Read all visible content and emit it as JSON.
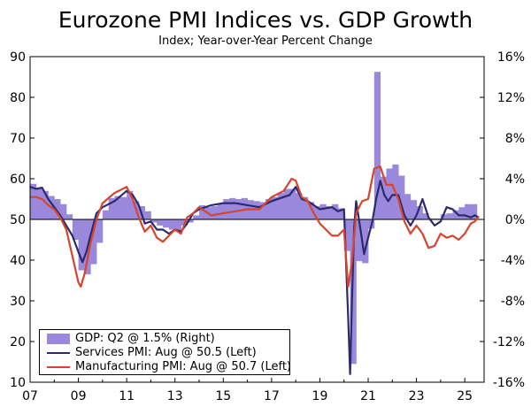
{
  "chart_data": {
    "type": "bar+line",
    "title": "Eurozone PMI Indices vs. GDP Growth",
    "subtitle": "Index; Year-over-Year Percent Change",
    "left_axis": {
      "ylim": [
        10,
        90
      ],
      "ticks": [
        "90",
        "80",
        "70",
        "60",
        "50",
        "40",
        "30",
        "20",
        "10"
      ]
    },
    "right_axis": {
      "ylim": [
        -16,
        16
      ],
      "ticks": [
        "16%",
        "12%",
        "8%",
        "4%",
        "0%",
        "-4%",
        "-8%",
        "-12%",
        "-16%"
      ]
    },
    "x_axis": {
      "xlim": [
        2007,
        2025.8
      ],
      "ticks": [
        "07",
        "09",
        "11",
        "13",
        "15",
        "17",
        "19",
        "21",
        "23",
        "25"
      ]
    },
    "reference_line": 50,
    "legend": [
      {
        "label": "GDP: Q2 @ 1.5% (Right)",
        "color": "#9a88dc",
        "kind": "bar"
      },
      {
        "label": "Services PMI: Aug @ 50.5 (Left)",
        "color": "#2a2a6e",
        "kind": "line"
      },
      {
        "label": "Manufacturing PMI: Aug @ 50.7 (Left)",
        "color": "#d8442a",
        "kind": "line"
      }
    ],
    "series": [
      {
        "name": "GDP: Q2 @ 1.5% (Right)",
        "axis": "right",
        "quarters": [
          2007.0,
          2007.25,
          2007.5,
          2007.75,
          2008.0,
          2008.25,
          2008.5,
          2008.75,
          2009.0,
          2009.25,
          2009.5,
          2009.75,
          2010.0,
          2010.25,
          2010.5,
          2010.75,
          2011.0,
          2011.25,
          2011.5,
          2011.75,
          2012.0,
          2012.25,
          2012.5,
          2012.75,
          2013.0,
          2013.25,
          2013.5,
          2013.75,
          2014.0,
          2014.25,
          2014.5,
          2014.75,
          2015.0,
          2015.25,
          2015.5,
          2015.75,
          2016.0,
          2016.25,
          2016.5,
          2016.75,
          2017.0,
          2017.25,
          2017.5,
          2017.75,
          2018.0,
          2018.25,
          2018.5,
          2018.75,
          2019.0,
          2019.25,
          2019.5,
          2019.75,
          2020.0,
          2020.25,
          2020.5,
          2020.75,
          2021.0,
          2021.25,
          2021.5,
          2021.75,
          2022.0,
          2022.25,
          2022.5,
          2022.75,
          2023.0,
          2023.25,
          2023.5,
          2023.75,
          2024.0,
          2024.25,
          2024.5,
          2024.75,
          2025.0,
          2025.25
        ],
        "values": [
          3.5,
          3.0,
          2.8,
          2.3,
          2.0,
          1.5,
          0.5,
          -2.0,
          -5.0,
          -5.4,
          -4.4,
          -2.3,
          0.9,
          2.1,
          2.3,
          2.2,
          2.8,
          1.8,
          1.3,
          0.8,
          -0.3,
          -0.6,
          -0.8,
          -1.0,
          -1.2,
          -0.6,
          -0.3,
          0.4,
          1.4,
          1.2,
          1.3,
          1.5,
          2.0,
          2.1,
          2.0,
          2.1,
          1.9,
          1.8,
          1.7,
          2.0,
          2.2,
          2.6,
          3.0,
          3.0,
          2.6,
          2.2,
          1.7,
          1.3,
          1.5,
          1.3,
          1.5,
          1.1,
          -3.1,
          -14.2,
          -4.1,
          -4.3,
          -0.9,
          14.5,
          4.2,
          5.0,
          5.4,
          4.3,
          2.5,
          1.9,
          1.3,
          0.6,
          0.1,
          0.1,
          0.5,
          0.6,
          0.9,
          1.2,
          1.5,
          1.5
        ]
      },
      {
        "name": "Services PMI: Aug @ 50.5 (Left)",
        "axis": "left",
        "x": [
          2007.0,
          2007.25,
          2007.5,
          2007.75,
          2008.0,
          2008.25,
          2008.5,
          2008.75,
          2009.0,
          2009.17,
          2009.33,
          2009.5,
          2009.75,
          2010.0,
          2010.5,
          2011.0,
          2011.25,
          2011.5,
          2011.75,
          2012.0,
          2012.25,
          2012.5,
          2012.75,
          2013.0,
          2013.25,
          2013.5,
          2013.75,
          2014.0,
          2014.5,
          2015.0,
          2015.5,
          2016.0,
          2016.5,
          2017.0,
          2017.5,
          2017.75,
          2018.0,
          2018.25,
          2018.5,
          2019.0,
          2019.5,
          2019.75,
          2020.0,
          2020.17,
          2020.25,
          2020.33,
          2020.42,
          2020.5,
          2020.67,
          2020.83,
          2021.0,
          2021.17,
          2021.33,
          2021.5,
          2021.67,
          2021.83,
          2022.0,
          2022.25,
          2022.5,
          2022.75,
          2023.0,
          2023.25,
          2023.5,
          2023.75,
          2024.0,
          2024.25,
          2024.5,
          2024.75,
          2025.0,
          2025.25,
          2025.42,
          2025.58
        ],
        "values": [
          58.0,
          57.5,
          57.8,
          55.0,
          53.0,
          51.0,
          48.5,
          46.0,
          42.0,
          39.5,
          42.0,
          46.0,
          51.5,
          53.0,
          54.5,
          57.0,
          56.0,
          53.5,
          49.0,
          49.5,
          47.5,
          47.5,
          46.5,
          47.5,
          47.0,
          49.0,
          51.5,
          52.5,
          53.5,
          54.0,
          54.0,
          53.5,
          53.0,
          54.5,
          55.5,
          56.0,
          58.0,
          55.0,
          54.5,
          52.5,
          53.0,
          52.0,
          52.5,
          26.0,
          12.0,
          30.0,
          48.0,
          54.5,
          48.0,
          41.5,
          45.5,
          49.5,
          55.0,
          59.5,
          56.0,
          54.5,
          56.0,
          56.0,
          51.0,
          48.5,
          51.0,
          55.0,
          50.5,
          48.5,
          49.5,
          53.0,
          52.5,
          51.0,
          51.0,
          50.5,
          51.0,
          50.5
        ]
      },
      {
        "name": "Manufacturing PMI: Aug @ 50.7 (Left)",
        "axis": "left",
        "x": [
          2007.0,
          2007.25,
          2007.5,
          2007.75,
          2008.0,
          2008.25,
          2008.5,
          2008.75,
          2009.0,
          2009.1,
          2009.25,
          2009.5,
          2009.75,
          2010.0,
          2010.5,
          2011.0,
          2011.25,
          2011.5,
          2011.75,
          2012.0,
          2012.25,
          2012.5,
          2012.75,
          2013.0,
          2013.25,
          2013.5,
          2013.75,
          2014.0,
          2014.5,
          2015.0,
          2015.5,
          2016.0,
          2016.5,
          2017.0,
          2017.5,
          2017.83,
          2018.0,
          2018.25,
          2018.5,
          2018.75,
          2019.0,
          2019.25,
          2019.5,
          2019.75,
          2020.0,
          2020.17,
          2020.33,
          2020.5,
          2020.75,
          2021.0,
          2021.25,
          2021.5,
          2021.75,
          2022.0,
          2022.25,
          2022.5,
          2022.75,
          2023.0,
          2023.25,
          2023.5,
          2023.75,
          2024.0,
          2024.25,
          2024.5,
          2024.75,
          2025.0,
          2025.25,
          2025.42,
          2025.58
        ],
        "values": [
          55.5,
          55.5,
          55.0,
          53.5,
          52.5,
          50.5,
          47.5,
          41.0,
          34.5,
          33.5,
          36.5,
          44.0,
          50.0,
          54.0,
          56.5,
          58.0,
          55.0,
          50.5,
          47.0,
          48.5,
          45.5,
          44.5,
          46.0,
          47.5,
          46.5,
          50.5,
          51.5,
          53.0,
          51.0,
          51.5,
          52.0,
          52.5,
          52.5,
          55.5,
          57.0,
          60.0,
          59.5,
          55.5,
          54.5,
          51.5,
          49.0,
          47.5,
          46.0,
          46.0,
          47.5,
          33.5,
          39.5,
          51.5,
          54.5,
          55.0,
          62.5,
          63.0,
          58.5,
          58.5,
          55.0,
          49.5,
          46.5,
          48.5,
          46.5,
          43.0,
          43.5,
          46.5,
          45.5,
          46.0,
          45.0,
          46.5,
          49.0,
          49.5,
          50.7
        ]
      }
    ]
  }
}
